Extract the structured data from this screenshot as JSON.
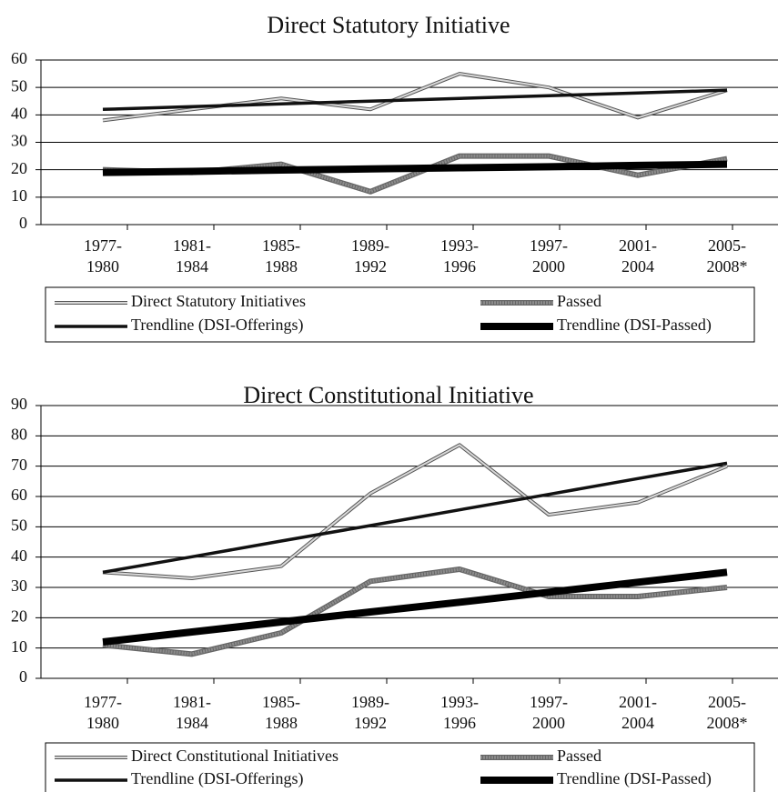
{
  "chart_data": [
    {
      "type": "line",
      "title": "Direct Statutory Initiative",
      "categories": [
        "1977-\n1980",
        "1981-\n1984",
        "1985-\n1988",
        "1989-\n1992",
        "1993-\n1996",
        "1997-\n2000",
        "2001-\n2004",
        "2005-\n2008*"
      ],
      "series": [
        {
          "name": "Direct Statutory Initiatives",
          "color": "#9a9a9a",
          "style": "double",
          "values": [
            38,
            42,
            46,
            42,
            55,
            50,
            39,
            49
          ]
        },
        {
          "name": "Passed",
          "color": "#8c8c8c",
          "style": "textured",
          "values": [
            20,
            19,
            22,
            12,
            25,
            25,
            18,
            24
          ]
        },
        {
          "name": "Trendline (DSI-Offerings)",
          "color": "#111111",
          "style": "thin",
          "values": [
            42,
            43,
            44,
            45,
            46,
            47,
            48,
            49
          ]
        },
        {
          "name": "Trendline (DSI-Passed)",
          "color": "#000000",
          "style": "thick",
          "values": [
            19,
            19.4,
            19.9,
            20.3,
            20.7,
            21.1,
            21.6,
            22
          ]
        }
      ],
      "ylim": [
        0,
        60
      ],
      "yticks": [
        0,
        10,
        20,
        30,
        40,
        50,
        60
      ],
      "grid": true
    },
    {
      "type": "line",
      "title": "Direct Constitutional Initiative",
      "categories": [
        "1977-\n1980",
        "1981-\n1984",
        "1985-\n1988",
        "1989-\n1992",
        "1993-\n1996",
        "1997-\n2000",
        "2001-\n2004",
        "2005-\n2008*"
      ],
      "series": [
        {
          "name": "Direct Constitutional Initiatives",
          "color": "#9a9a9a",
          "style": "double",
          "values": [
            35,
            33,
            37,
            61,
            77,
            54,
            58,
            70
          ]
        },
        {
          "name": "Passed",
          "color": "#8c8c8c",
          "style": "textured",
          "values": [
            11,
            8,
            15,
            32,
            36,
            27,
            27,
            30
          ]
        },
        {
          "name": "Trendline (DSI-Offerings)",
          "color": "#111111",
          "style": "thin",
          "values": [
            35,
            40.1,
            45.3,
            50.4,
            55.6,
            60.7,
            65.9,
            71
          ]
        },
        {
          "name": "Trendline (DSI-Passed)",
          "color": "#000000",
          "style": "thick",
          "values": [
            12,
            15.3,
            18.6,
            21.9,
            25.1,
            28.4,
            31.7,
            35
          ]
        }
      ],
      "ylim": [
        0,
        90
      ],
      "yticks": [
        0,
        10,
        20,
        30,
        40,
        50,
        60,
        70,
        80,
        90
      ],
      "grid": true
    }
  ]
}
